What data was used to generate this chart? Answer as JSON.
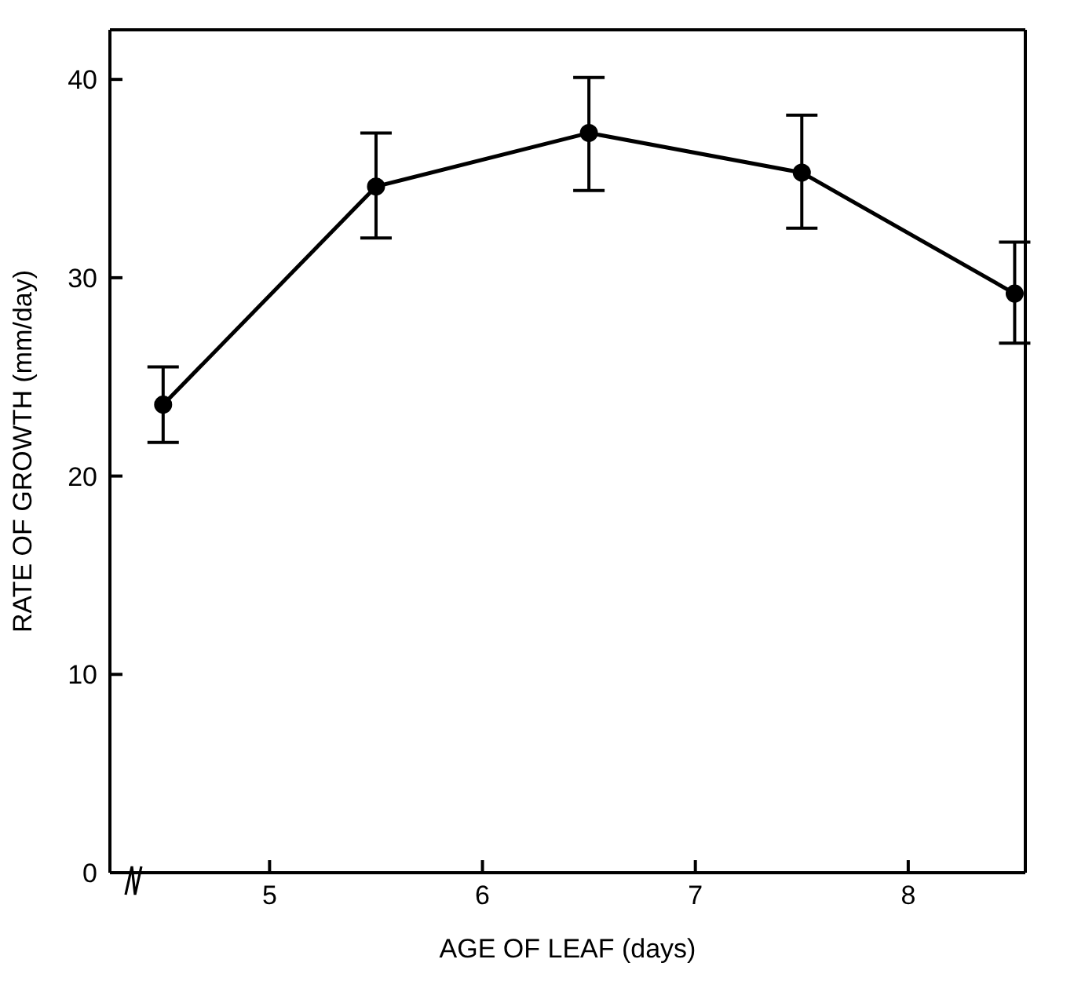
{
  "chart_data": {
    "type": "line",
    "xlabel": "AGE OF LEAF (days)",
    "ylabel": "RATE OF GROWTH (mm/day)",
    "x": [
      4.5,
      5.5,
      6.5,
      7.5,
      8.5
    ],
    "series": [
      {
        "color": "#000000",
        "values": [
          23.6,
          34.6,
          37.3,
          35.3,
          29.2
        ],
        "errors": [
          [
            21.7,
            25.5
          ],
          [
            32,
            37.3
          ],
          [
            34.4,
            40.1
          ],
          [
            32.5,
            38.2
          ],
          [
            26.7,
            31.8
          ]
        ]
      }
    ],
    "xlim": [
      4.25,
      8.55
    ],
    "xticks": [
      5,
      6,
      7,
      8
    ],
    "ylim": [
      0,
      42.5
    ],
    "yticks": [
      0,
      10,
      20,
      30,
      40
    ],
    "grid": false,
    "legend": false,
    "marker": "circle",
    "line_style": "solid"
  }
}
